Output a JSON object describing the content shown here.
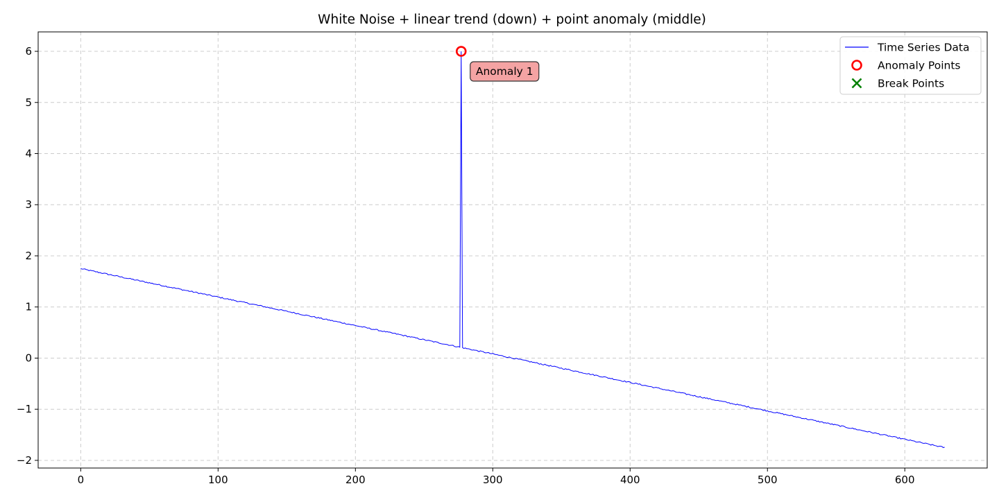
{
  "chart_data": {
    "type": "line",
    "title": "White Noise + linear trend (down) + point anomaly (middle)",
    "xlabel": "",
    "ylabel": "",
    "xlim": [
      -31,
      660
    ],
    "ylim": [
      -2.15,
      6.38
    ],
    "x_ticks": [
      0,
      100,
      200,
      300,
      400,
      500,
      600
    ],
    "x_tick_labels": [
      "0",
      "100",
      "200",
      "300",
      "400",
      "500",
      "600"
    ],
    "y_ticks": [
      -2,
      -1,
      0,
      1,
      2,
      3,
      4,
      5,
      6
    ],
    "y_tick_labels": [
      "−2",
      "−1",
      "0",
      "1",
      "2",
      "3",
      "4",
      "5",
      "6"
    ],
    "grid": true,
    "legend_position": "top-right",
    "series": [
      {
        "name": "Time Series Data",
        "color": "#0000ff",
        "start_x": 0,
        "end_x": 629,
        "start_y": 1.75,
        "end_y": -1.75,
        "noise_amplitude": 0.012,
        "anomaly_x": 277,
        "anomaly_y": 6.0
      }
    ],
    "anomaly_points": [
      {
        "x": 277,
        "y": 6.0
      }
    ],
    "break_points": [],
    "annotations": [
      {
        "text": "Anomaly 1",
        "x": 277,
        "y": 6.0
      }
    ],
    "legend": [
      {
        "label": "Time Series Data",
        "marker": "line",
        "color": "#0000ff"
      },
      {
        "label": "Anomaly Points",
        "marker": "circle",
        "color": "#ff0000"
      },
      {
        "label": "Break Points",
        "marker": "x",
        "color": "#008000"
      }
    ],
    "colors": {
      "line": "#0000ff",
      "anomaly": "#ff0000",
      "break": "#008000",
      "annotation_fill": "#f4a3a3",
      "grid": "#cccccc"
    }
  }
}
